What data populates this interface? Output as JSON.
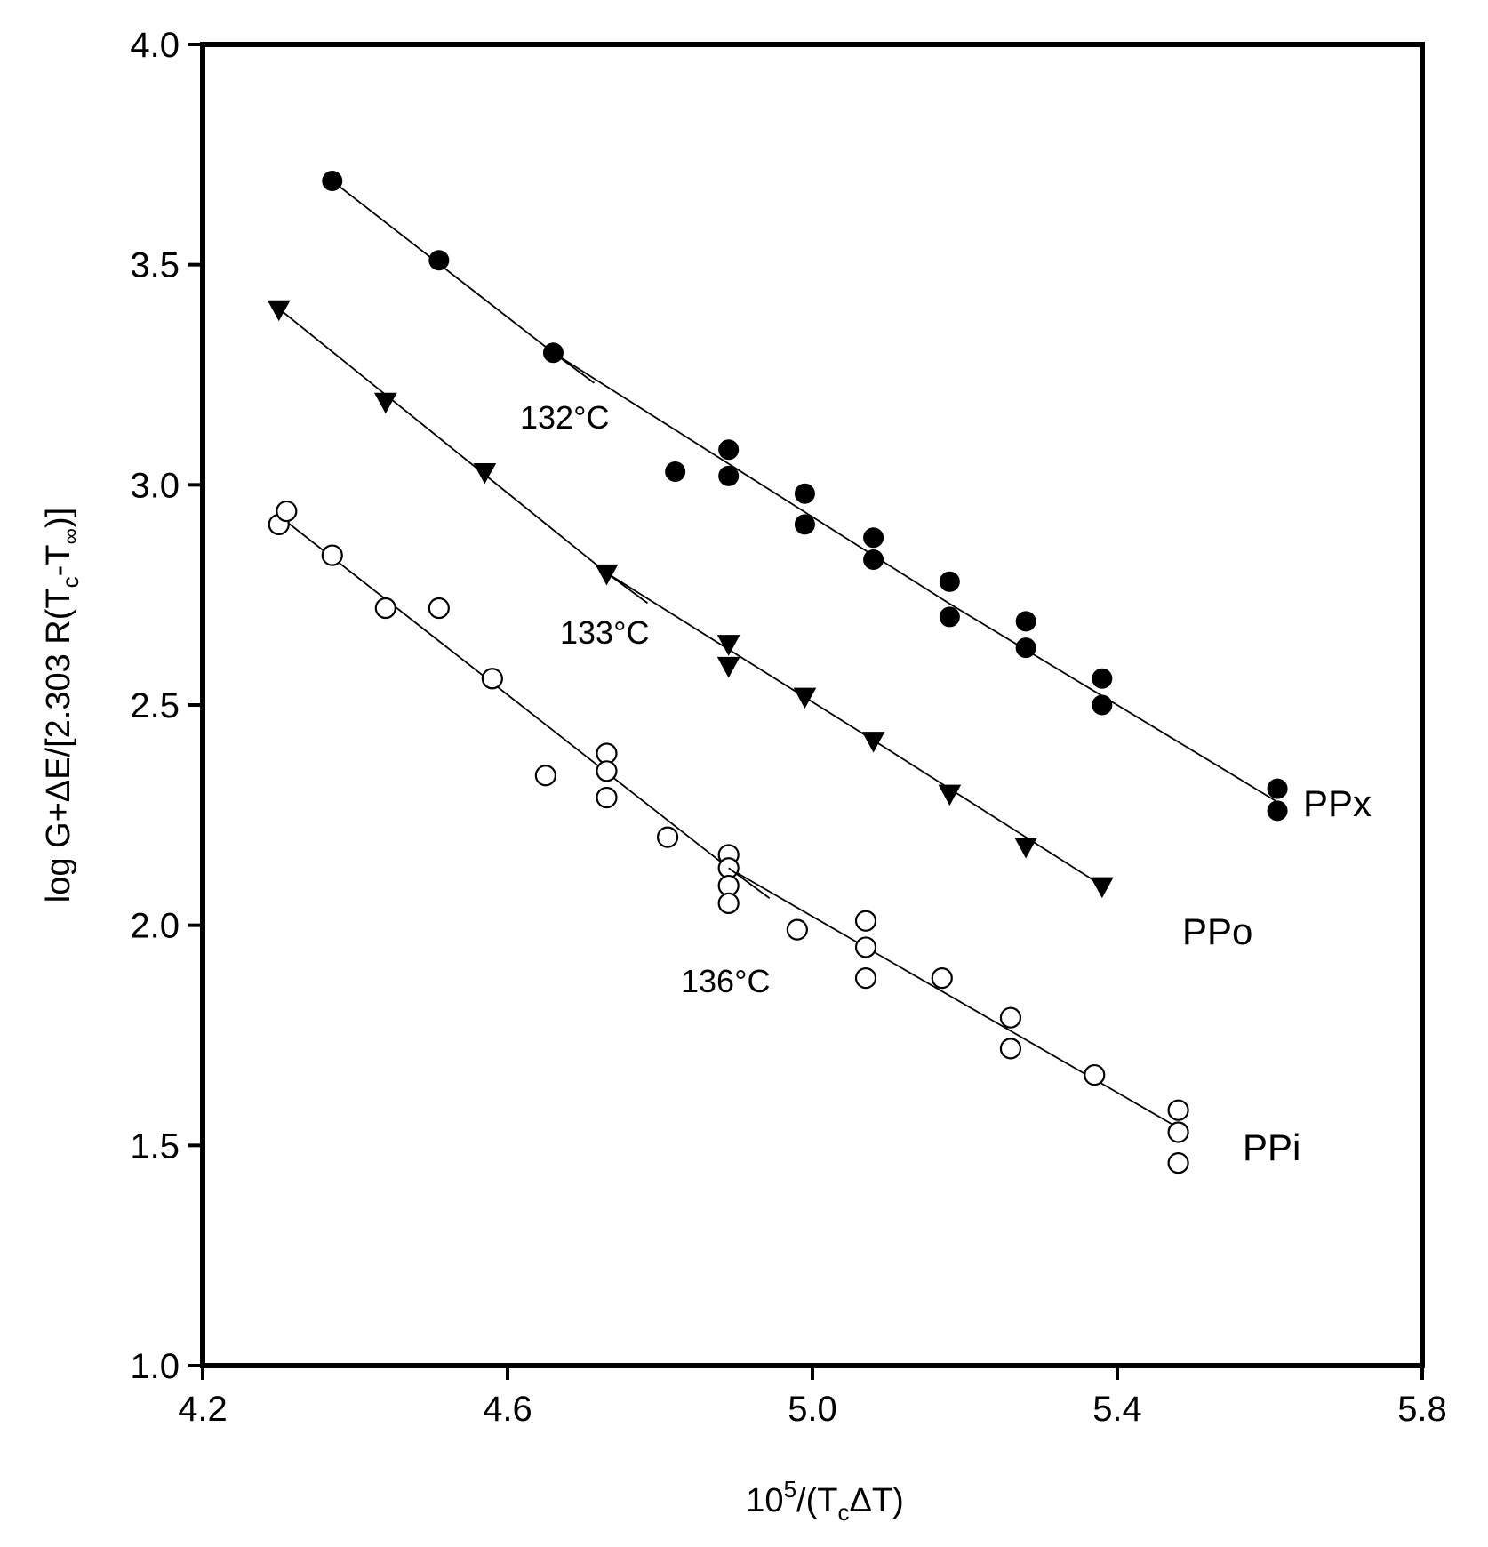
{
  "chart_data": {
    "type": "scatter",
    "title": "",
    "xlabel": {
      "base": "10",
      "exp": "5",
      "rest1": "/(T",
      "sub": "c",
      "rest2": "ΔT)"
    },
    "ylabel": {
      "p1": "log G+ΔE/[2.303 R(T",
      "sub1": "c",
      "p2": "-T",
      "sub2": "∞",
      "p3": ")]"
    },
    "xlim": [
      4.2,
      5.8
    ],
    "ylim": [
      1.0,
      4.0
    ],
    "xticks": [
      4.2,
      4.6,
      5.0,
      5.4,
      5.8
    ],
    "xtick_labels": [
      "4.2",
      "4.6",
      "5.0",
      "5.4",
      "5.8"
    ],
    "yticks": [
      1.0,
      1.5,
      2.0,
      2.5,
      3.0,
      3.5,
      4.0
    ],
    "ytick_labels": [
      "1.0",
      "1.5",
      "2.0",
      "2.5",
      "3.0",
      "3.5",
      "4.0"
    ],
    "grid": false,
    "series": [
      {
        "name": "PPx",
        "label_main": "PP",
        "label_suffix": "x",
        "marker": "filled-circle",
        "points": [
          [
            4.37,
            3.69
          ],
          [
            4.51,
            3.51
          ],
          [
            4.66,
            3.3
          ],
          [
            4.82,
            3.03
          ],
          [
            4.89,
            3.08
          ],
          [
            4.89,
            3.02
          ],
          [
            4.99,
            2.98
          ],
          [
            4.99,
            2.91
          ],
          [
            5.08,
            2.88
          ],
          [
            5.08,
            2.83
          ],
          [
            5.18,
            2.78
          ],
          [
            5.18,
            2.7
          ],
          [
            5.28,
            2.69
          ],
          [
            5.28,
            2.63
          ],
          [
            5.38,
            2.56
          ],
          [
            5.38,
            2.5
          ],
          [
            5.61,
            2.31
          ],
          [
            5.61,
            2.26
          ]
        ],
        "fit": [
          [
            4.37,
            3.69
          ],
          [
            4.66,
            3.3
          ],
          [
            5.18,
            2.73
          ],
          [
            5.61,
            2.28
          ]
        ],
        "temperature": "132°C",
        "temperature_at": [
          4.66,
          3.3
        ]
      },
      {
        "name": "PPo",
        "label_main": "PP",
        "label_suffix": "o",
        "marker": "filled-triangle-down",
        "points": [
          [
            4.3,
            3.4
          ],
          [
            4.44,
            3.19
          ],
          [
            4.57,
            3.03
          ],
          [
            4.73,
            2.8
          ],
          [
            4.89,
            2.64
          ],
          [
            4.89,
            2.59
          ],
          [
            4.99,
            2.52
          ],
          [
            5.08,
            2.42
          ],
          [
            5.18,
            2.3
          ],
          [
            5.28,
            2.18
          ],
          [
            5.38,
            2.09
          ]
        ],
        "fit": [
          [
            4.3,
            3.4
          ],
          [
            4.73,
            2.8
          ],
          [
            5.08,
            2.42
          ],
          [
            5.38,
            2.09
          ]
        ],
        "temperature": "133°C",
        "temperature_at": [
          4.73,
          2.8
        ]
      },
      {
        "name": "PPi",
        "label_main": "PP",
        "label_suffix": "i",
        "marker": "open-circle",
        "points": [
          [
            4.3,
            2.91
          ],
          [
            4.31,
            2.94
          ],
          [
            4.37,
            2.84
          ],
          [
            4.44,
            2.72
          ],
          [
            4.51,
            2.72
          ],
          [
            4.58,
            2.56
          ],
          [
            4.65,
            2.34
          ],
          [
            4.73,
            2.39
          ],
          [
            4.73,
            2.35
          ],
          [
            4.73,
            2.29
          ],
          [
            4.81,
            2.2
          ],
          [
            4.89,
            2.16
          ],
          [
            4.89,
            2.13
          ],
          [
            4.89,
            2.09
          ],
          [
            4.89,
            2.05
          ],
          [
            4.98,
            1.99
          ],
          [
            5.07,
            2.01
          ],
          [
            5.07,
            1.95
          ],
          [
            5.07,
            1.88
          ],
          [
            5.17,
            1.88
          ],
          [
            5.26,
            1.79
          ],
          [
            5.26,
            1.72
          ],
          [
            5.37,
            1.66
          ],
          [
            5.48,
            1.58
          ],
          [
            5.48,
            1.53
          ],
          [
            5.48,
            1.46
          ]
        ],
        "fit": [
          [
            4.3,
            2.93
          ],
          [
            4.89,
            2.13
          ],
          [
            5.48,
            1.54
          ]
        ],
        "temperature": "136°C",
        "temperature_at": [
          4.89,
          2.13
        ]
      }
    ]
  }
}
